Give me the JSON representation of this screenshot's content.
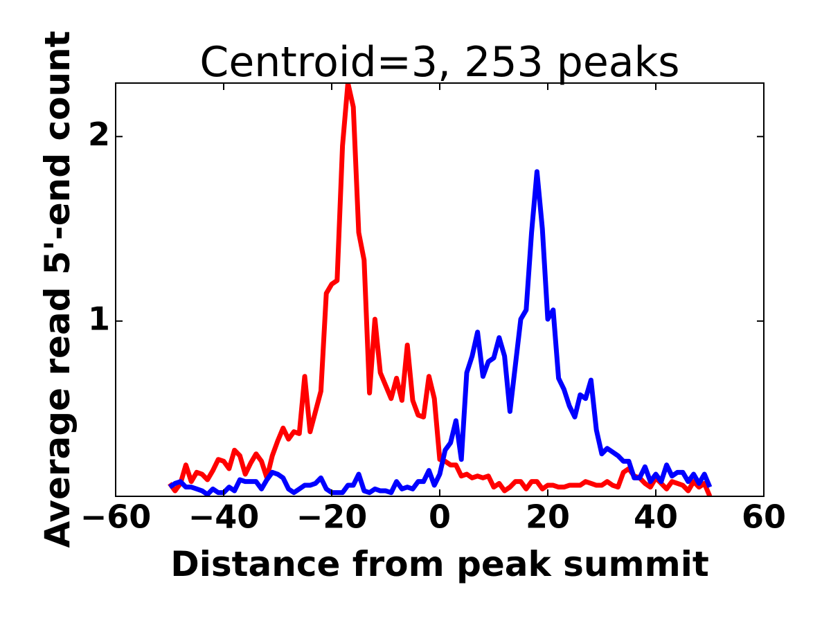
{
  "chart_data": {
    "type": "line",
    "title": "Centroid=3, 253 peaks",
    "xlabel": "Distance from peak summit",
    "ylabel": "Average read 5'-end count",
    "x": [
      -50,
      -49,
      -48,
      -47,
      -46,
      -45,
      -44,
      -43,
      -42,
      -41,
      -40,
      -39,
      -38,
      -37,
      -36,
      -35,
      -34,
      -33,
      -32,
      -31,
      -30,
      -29,
      -28,
      -27,
      -26,
      -25,
      -24,
      -23,
      -22,
      -21,
      -20,
      -19,
      -18,
      -17,
      -16,
      -15,
      -14,
      -13,
      -12,
      -11,
      -10,
      -9,
      -8,
      -7,
      -6,
      -5,
      -4,
      -3,
      -2,
      -1,
      0,
      1,
      2,
      3,
      4,
      5,
      6,
      7,
      8,
      9,
      10,
      11,
      12,
      13,
      14,
      15,
      16,
      17,
      18,
      19,
      20,
      21,
      22,
      23,
      24,
      25,
      26,
      27,
      28,
      29,
      30,
      31,
      32,
      33,
      34,
      35,
      36,
      37,
      38,
      39,
      40,
      41,
      42,
      43,
      44,
      45,
      46,
      47,
      48,
      49,
      50
    ],
    "series": [
      {
        "color": "#ff0000",
        "values": [
          0.12,
          0.08,
          0.12,
          0.22,
          0.13,
          0.18,
          0.17,
          0.14,
          0.19,
          0.25,
          0.24,
          0.2,
          0.3,
          0.27,
          0.17,
          0.23,
          0.28,
          0.24,
          0.15,
          0.27,
          0.35,
          0.42,
          0.36,
          0.4,
          0.39,
          0.7,
          0.4,
          0.51,
          0.62,
          1.15,
          1.2,
          1.22,
          1.95,
          2.29,
          2.16,
          1.48,
          1.33,
          0.61,
          1.01,
          0.72,
          0.65,
          0.58,
          0.69,
          0.57,
          0.87,
          0.57,
          0.49,
          0.48,
          0.7,
          0.58,
          0.25,
          0.24,
          0.22,
          0.22,
          0.16,
          0.17,
          0.15,
          0.16,
          0.15,
          0.16,
          0.1,
          0.12,
          0.08,
          0.1,
          0.13,
          0.13,
          0.09,
          0.13,
          0.13,
          0.09,
          0.11,
          0.11,
          0.1,
          0.1,
          0.11,
          0.11,
          0.11,
          0.13,
          0.12,
          0.11,
          0.11,
          0.13,
          0.11,
          0.1,
          0.18,
          0.2,
          0.16,
          0.15,
          0.12,
          0.1,
          0.15,
          0.12,
          0.09,
          0.13,
          0.12,
          0.11,
          0.08,
          0.13,
          0.1,
          0.12,
          0.05
        ]
      },
      {
        "color": "#0000ff",
        "values": [
          0.1,
          0.12,
          0.13,
          0.1,
          0.1,
          0.09,
          0.08,
          0.06,
          0.09,
          0.07,
          0.07,
          0.1,
          0.08,
          0.14,
          0.13,
          0.13,
          0.13,
          0.09,
          0.14,
          0.18,
          0.17,
          0.15,
          0.09,
          0.07,
          0.09,
          0.11,
          0.11,
          0.12,
          0.15,
          0.09,
          0.07,
          0.07,
          0.07,
          0.11,
          0.11,
          0.17,
          0.08,
          0.07,
          0.09,
          0.08,
          0.08,
          0.07,
          0.13,
          0.09,
          0.1,
          0.09,
          0.13,
          0.13,
          0.19,
          0.11,
          0.17,
          0.3,
          0.34,
          0.46,
          0.25,
          0.72,
          0.81,
          0.94,
          0.7,
          0.78,
          0.8,
          0.91,
          0.81,
          0.51,
          0.76,
          1.01,
          1.06,
          1.48,
          1.81,
          1.5,
          1.01,
          1.06,
          0.69,
          0.63,
          0.54,
          0.48,
          0.6,
          0.58,
          0.68,
          0.41,
          0.28,
          0.31,
          0.29,
          0.27,
          0.24,
          0.24,
          0.15,
          0.15,
          0.21,
          0.13,
          0.17,
          0.13,
          0.22,
          0.16,
          0.18,
          0.18,
          0.13,
          0.17,
          0.12,
          0.17,
          0.1
        ]
      }
    ],
    "xlim": [
      -60,
      60
    ],
    "xticks": [
      {
        "value": -60,
        "label": "−60"
      },
      {
        "value": -40,
        "label": "−40"
      },
      {
        "value": -20,
        "label": "−20"
      },
      0,
      20,
      40,
      60
    ],
    "ylim": [
      0.05,
      2.29
    ],
    "yticks": [
      1,
      2
    ]
  }
}
